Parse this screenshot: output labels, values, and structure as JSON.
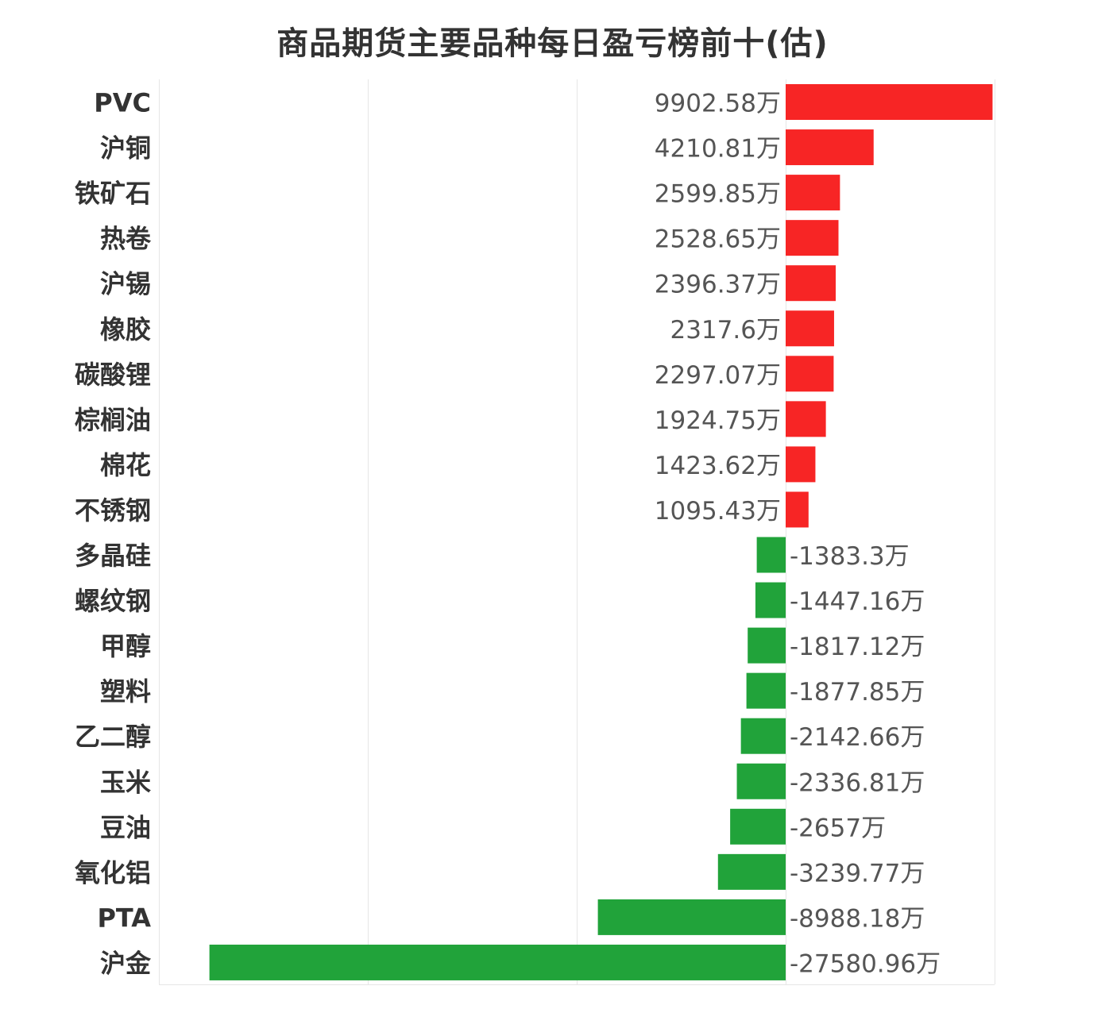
{
  "chart_data": {
    "type": "bar",
    "orientation": "horizontal",
    "title": "商品期货主要品种每日盈亏榜前十(估)",
    "value_unit": "万",
    "categories": [
      "PVC",
      "沪铜",
      "铁矿石",
      "热卷",
      "沪锡",
      "橡胶",
      "碳酸锂",
      "棕榈油",
      "棉花",
      "不锈钢",
      "多晶硅",
      "螺纹钢",
      "甲醇",
      "塑料",
      "乙二醇",
      "玉米",
      "豆油",
      "氧化铝",
      "PTA",
      "沪金"
    ],
    "values": [
      9902.58,
      4210.81,
      2599.85,
      2528.65,
      2396.37,
      2317.6,
      2297.07,
      1924.75,
      1423.62,
      1095.43,
      -1383.3,
      -1447.16,
      -1817.12,
      -1877.85,
      -2142.66,
      -2336.81,
      -2657,
      -3239.77,
      -8988.18,
      -27580.96
    ],
    "value_labels": [
      "9902.58万",
      "4210.81万",
      "2599.85万",
      "2528.65万",
      "2396.37万",
      "2317.6万",
      "2297.07万",
      "1924.75万",
      "1423.62万",
      "1095.43万",
      "-1383.3万",
      "-1447.16万",
      "-1817.12万",
      "-1877.85万",
      "-2142.66万",
      "-2336.81万",
      "-2657万",
      "-3239.77万",
      "-8988.18万",
      "-27580.96万"
    ],
    "xlim": [
      -30000,
      10000
    ],
    "grid": true,
    "legend": "none",
    "colors": {
      "positive": "#f72525",
      "negative": "#21a33a",
      "grid": "#e6e6e6",
      "category_text": "#333333",
      "value_text": "#555555"
    }
  }
}
